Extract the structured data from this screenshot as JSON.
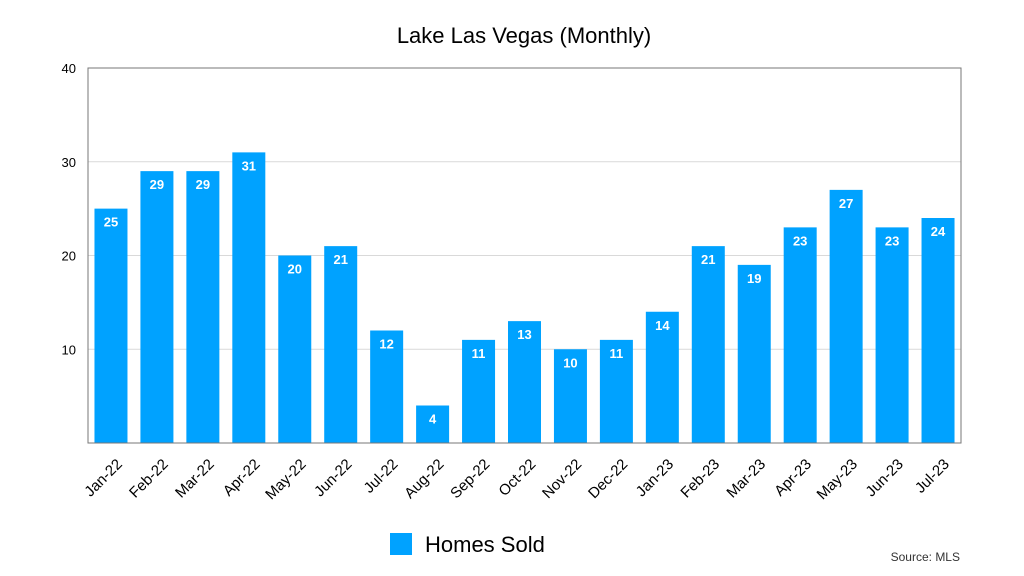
{
  "chart_data": {
    "type": "bar",
    "title": "Lake Las Vegas (Monthly)",
    "xlabel": "",
    "ylabel": "",
    "ylim": [
      0,
      40
    ],
    "yticks": [
      10,
      20,
      30,
      40
    ],
    "grid": true,
    "categories": [
      "Jan-22",
      "Feb-22",
      "Mar-22",
      "Apr-22",
      "May-22",
      "Jun-22",
      "Jul-22",
      "Aug-22",
      "Sep-22",
      "Oct-22",
      "Nov-22",
      "Dec-22",
      "Jan-23",
      "Feb-23",
      "Mar-23",
      "Apr-23",
      "May-23",
      "Jun-23",
      "Jul-23"
    ],
    "series": [
      {
        "name": "Homes Sold",
        "color": "#00A2FF",
        "values": [
          25,
          29,
          29,
          31,
          20,
          21,
          12,
          4,
          11,
          13,
          10,
          11,
          14,
          21,
          19,
          23,
          27,
          23,
          24
        ]
      }
    ],
    "legend_position": "bottom",
    "source": "Source: MLS"
  }
}
